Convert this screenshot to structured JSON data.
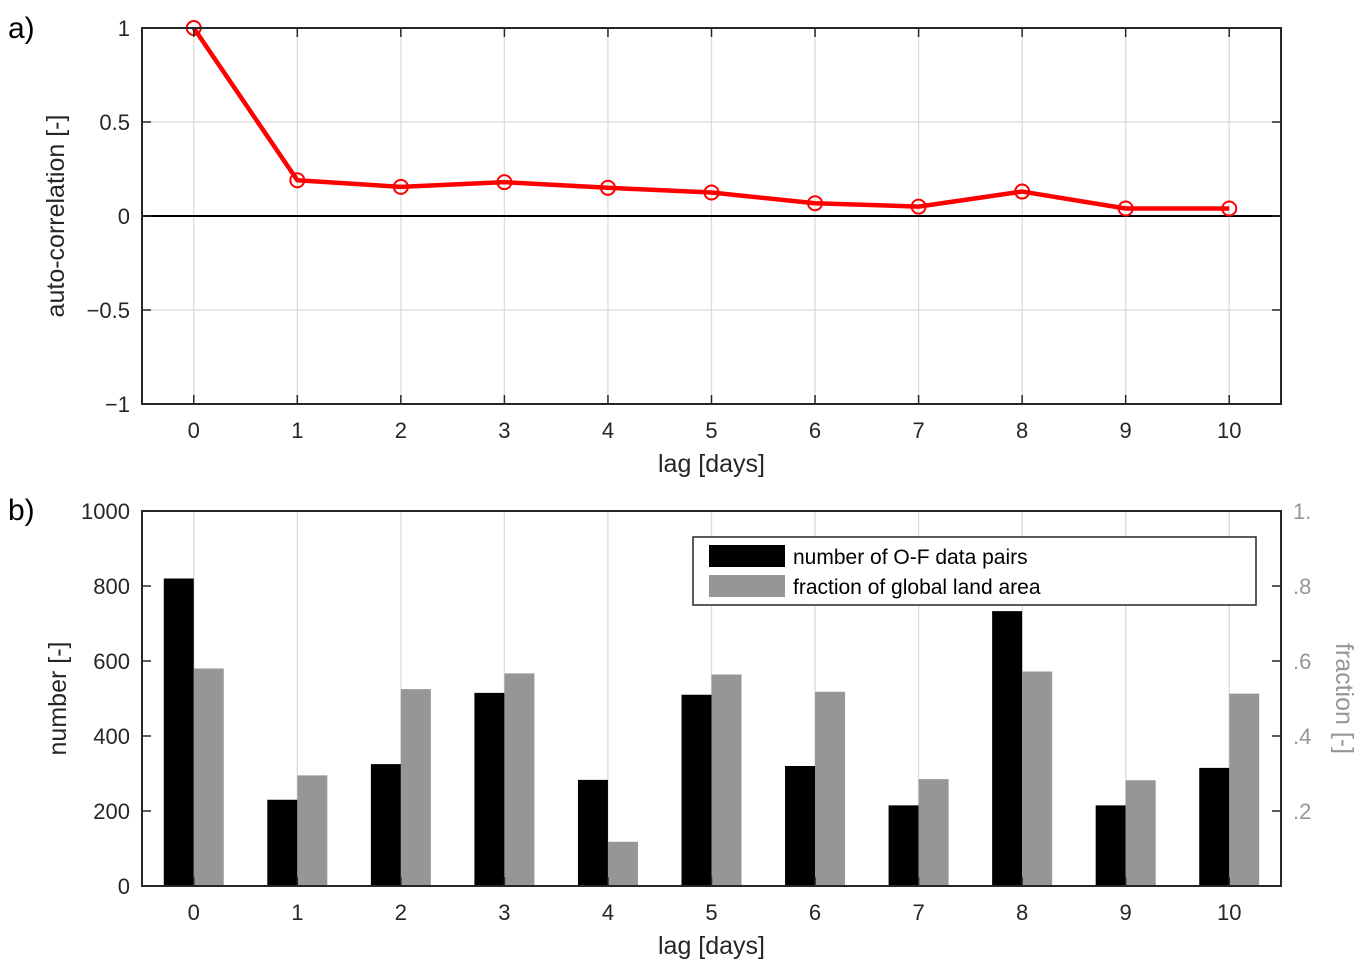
{
  "chart_data": [
    {
      "panel_label": "a)",
      "type": "line",
      "x": [
        0,
        1,
        2,
        3,
        4,
        5,
        6,
        7,
        8,
        9,
        10
      ],
      "series": [
        {
          "values": [
            1.0,
            0.19,
            0.155,
            0.18,
            0.15,
            0.125,
            0.068,
            0.05,
            0.13,
            0.04,
            0.04
          ],
          "color": "#ff0000",
          "marker": "circle"
        }
      ],
      "xlabel": "lag [days]",
      "ylabel": "auto-correlation [-]",
      "xlim": [
        -0.5,
        10.5
      ],
      "ylim": [
        -1,
        1
      ],
      "xticks": [
        "0",
        "1",
        "2",
        "3",
        "4",
        "5",
        "6",
        "7",
        "8",
        "9",
        "10"
      ],
      "yticks": [
        {
          "value": 1,
          "label": "1"
        },
        {
          "value": 0.5,
          "label": "0.5"
        },
        {
          "value": 0,
          "label": "0"
        },
        {
          "value": -0.5,
          "label": "−0.5"
        },
        {
          "value": -1,
          "label": "−1"
        }
      ],
      "zero_line": true,
      "grid": true
    },
    {
      "panel_label": "b)",
      "type": "bar",
      "categories": [
        "0",
        "1",
        "2",
        "3",
        "4",
        "5",
        "6",
        "7",
        "8",
        "9",
        "10"
      ],
      "series": [
        {
          "name": "number of O-F data pairs",
          "axis": "left",
          "color": "#000000",
          "values": [
            820,
            230,
            325,
            515,
            283,
            510,
            320,
            215,
            733,
            215,
            315
          ]
        },
        {
          "name": "fraction of global land area",
          "axis": "right",
          "color": "#969696",
          "values": [
            0.58,
            0.295,
            0.525,
            0.567,
            0.118,
            0.564,
            0.518,
            0.285,
            0.572,
            0.282,
            0.513
          ]
        }
      ],
      "xlabel": "lag [days]",
      "ylabel_left": "number [-]",
      "ylabel_right": "fraction [-]",
      "ylim_left": [
        0,
        1000
      ],
      "ylim_right": [
        0,
        1
      ],
      "yticks_left": [
        "0",
        "200",
        "400",
        "600",
        "800",
        "1000"
      ],
      "yticks_right": [
        {
          "value": 0.2,
          "label": ".2"
        },
        {
          "value": 0.4,
          "label": ".4"
        },
        {
          "value": 0.6,
          "label": ".6"
        },
        {
          "value": 0.8,
          "label": ".8"
        },
        {
          "value": 1.0,
          "label": "1."
        }
      ],
      "legend_position": "top-right",
      "right_axis_color": "#969696",
      "grid": "vertical"
    }
  ]
}
